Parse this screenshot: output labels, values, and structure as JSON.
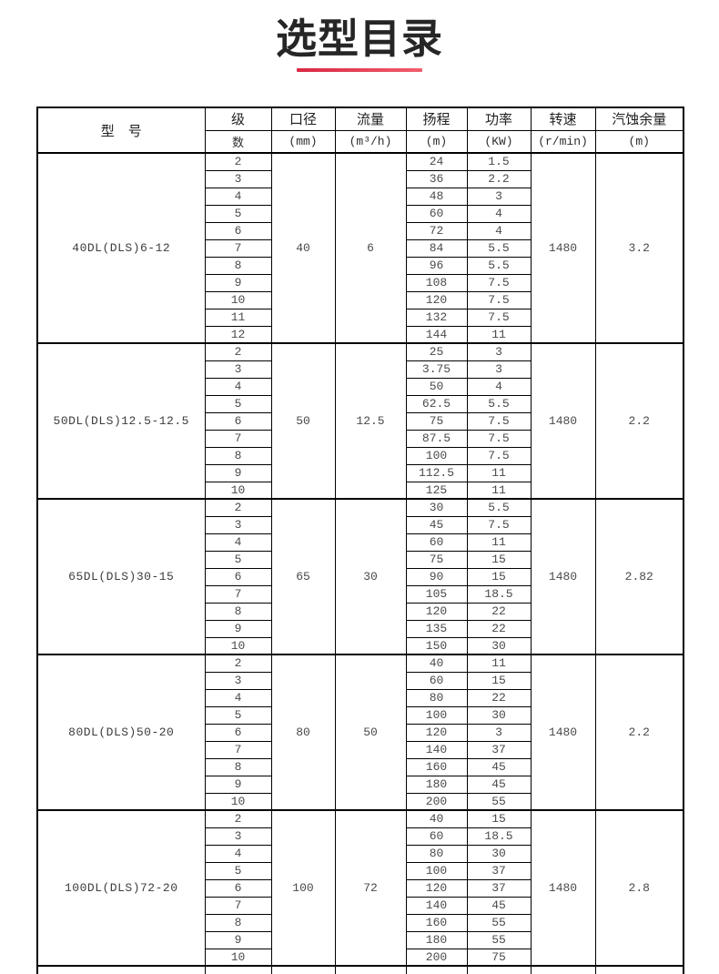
{
  "page": {
    "title": "选型目录"
  },
  "theme": {
    "accent_red": "#d92743",
    "border_color": "#000000"
  },
  "table": {
    "header": {
      "model": "型　号",
      "stages_line1": "级",
      "stages_line2": "数",
      "diameter_line1": "口径",
      "diameter_line2": "(mm)",
      "flow_line1": "流量",
      "flow_line2": "(m³/h)",
      "head_line1": "扬程",
      "head_line2": "(m)",
      "power_line1": "功率",
      "power_line2": "(KW)",
      "speed_line1": "转速",
      "speed_line2": "(r/min)",
      "npsh_line1": "汽蚀余量",
      "npsh_line2": "(m)"
    },
    "sections": [
      {
        "model": "40DL(DLS)6-12",
        "diameter": "40",
        "flow": "6",
        "speed": "1480",
        "npsh": "3.2",
        "rows": [
          {
            "stage": "2",
            "head": "24",
            "power": "1.5"
          },
          {
            "stage": "3",
            "head": "36",
            "power": "2.2"
          },
          {
            "stage": "4",
            "head": "48",
            "power": "3"
          },
          {
            "stage": "5",
            "head": "60",
            "power": "4"
          },
          {
            "stage": "6",
            "head": "72",
            "power": "4"
          },
          {
            "stage": "7",
            "head": "84",
            "power": "5.5"
          },
          {
            "stage": "8",
            "head": "96",
            "power": "5.5"
          },
          {
            "stage": "9",
            "head": "108",
            "power": "7.5"
          },
          {
            "stage": "10",
            "head": "120",
            "power": "7.5"
          },
          {
            "stage": "11",
            "head": "132",
            "power": "7.5"
          },
          {
            "stage": "12",
            "head": "144",
            "power": "11"
          }
        ]
      },
      {
        "model": "50DL(DLS)12.5-12.5",
        "diameter": "50",
        "flow": "12.5",
        "speed": "1480",
        "npsh": "2.2",
        "rows": [
          {
            "stage": "2",
            "head": "25",
            "power": "3"
          },
          {
            "stage": "3",
            "head": "3.75",
            "power": "3"
          },
          {
            "stage": "4",
            "head": "50",
            "power": "4"
          },
          {
            "stage": "5",
            "head": "62.5",
            "power": "5.5"
          },
          {
            "stage": "6",
            "head": "75",
            "power": "7.5"
          },
          {
            "stage": "7",
            "head": "87.5",
            "power": "7.5"
          },
          {
            "stage": "8",
            "head": "100",
            "power": "7.5"
          },
          {
            "stage": "9",
            "head": "112.5",
            "power": "11"
          },
          {
            "stage": "10",
            "head": "125",
            "power": "11"
          }
        ]
      },
      {
        "model": "65DL(DLS)30-15",
        "diameter": "65",
        "flow": "30",
        "speed": "1480",
        "npsh": "2.82",
        "rows": [
          {
            "stage": "2",
            "head": "30",
            "power": "5.5"
          },
          {
            "stage": "3",
            "head": "45",
            "power": "7.5"
          },
          {
            "stage": "4",
            "head": "60",
            "power": "11"
          },
          {
            "stage": "5",
            "head": "75",
            "power": "15"
          },
          {
            "stage": "6",
            "head": "90",
            "power": "15"
          },
          {
            "stage": "7",
            "head": "105",
            "power": "18.5"
          },
          {
            "stage": "8",
            "head": "120",
            "power": "22"
          },
          {
            "stage": "9",
            "head": "135",
            "power": "22"
          },
          {
            "stage": "10",
            "head": "150",
            "power": "30"
          }
        ]
      },
      {
        "model": "80DL(DLS)50-20",
        "diameter": "80",
        "flow": "50",
        "speed": "1480",
        "npsh": "2.2",
        "rows": [
          {
            "stage": "2",
            "head": "40",
            "power": "11"
          },
          {
            "stage": "3",
            "head": "60",
            "power": "15"
          },
          {
            "stage": "4",
            "head": "80",
            "power": "22"
          },
          {
            "stage": "5",
            "head": "100",
            "power": "30"
          },
          {
            "stage": "6",
            "head": "120",
            "power": "3"
          },
          {
            "stage": "7",
            "head": "140",
            "power": "37"
          },
          {
            "stage": "8",
            "head": "160",
            "power": "45"
          },
          {
            "stage": "9",
            "head": "180",
            "power": "45"
          },
          {
            "stage": "10",
            "head": "200",
            "power": "55"
          }
        ]
      },
      {
        "model": "100DL(DLS)72-20",
        "diameter": "100",
        "flow": "72",
        "speed": "1480",
        "npsh": "2.8",
        "rows": [
          {
            "stage": "2",
            "head": "40",
            "power": "15"
          },
          {
            "stage": "3",
            "head": "60",
            "power": "18.5"
          },
          {
            "stage": "4",
            "head": "80",
            "power": "30"
          },
          {
            "stage": "5",
            "head": "100",
            "power": "37"
          },
          {
            "stage": "6",
            "head": "120",
            "power": "37"
          },
          {
            "stage": "7",
            "head": "140",
            "power": "45"
          },
          {
            "stage": "8",
            "head": "160",
            "power": "55"
          },
          {
            "stage": "9",
            "head": "180",
            "power": "55"
          },
          {
            "stage": "10",
            "head": "200",
            "power": "75"
          }
        ]
      }
    ]
  }
}
